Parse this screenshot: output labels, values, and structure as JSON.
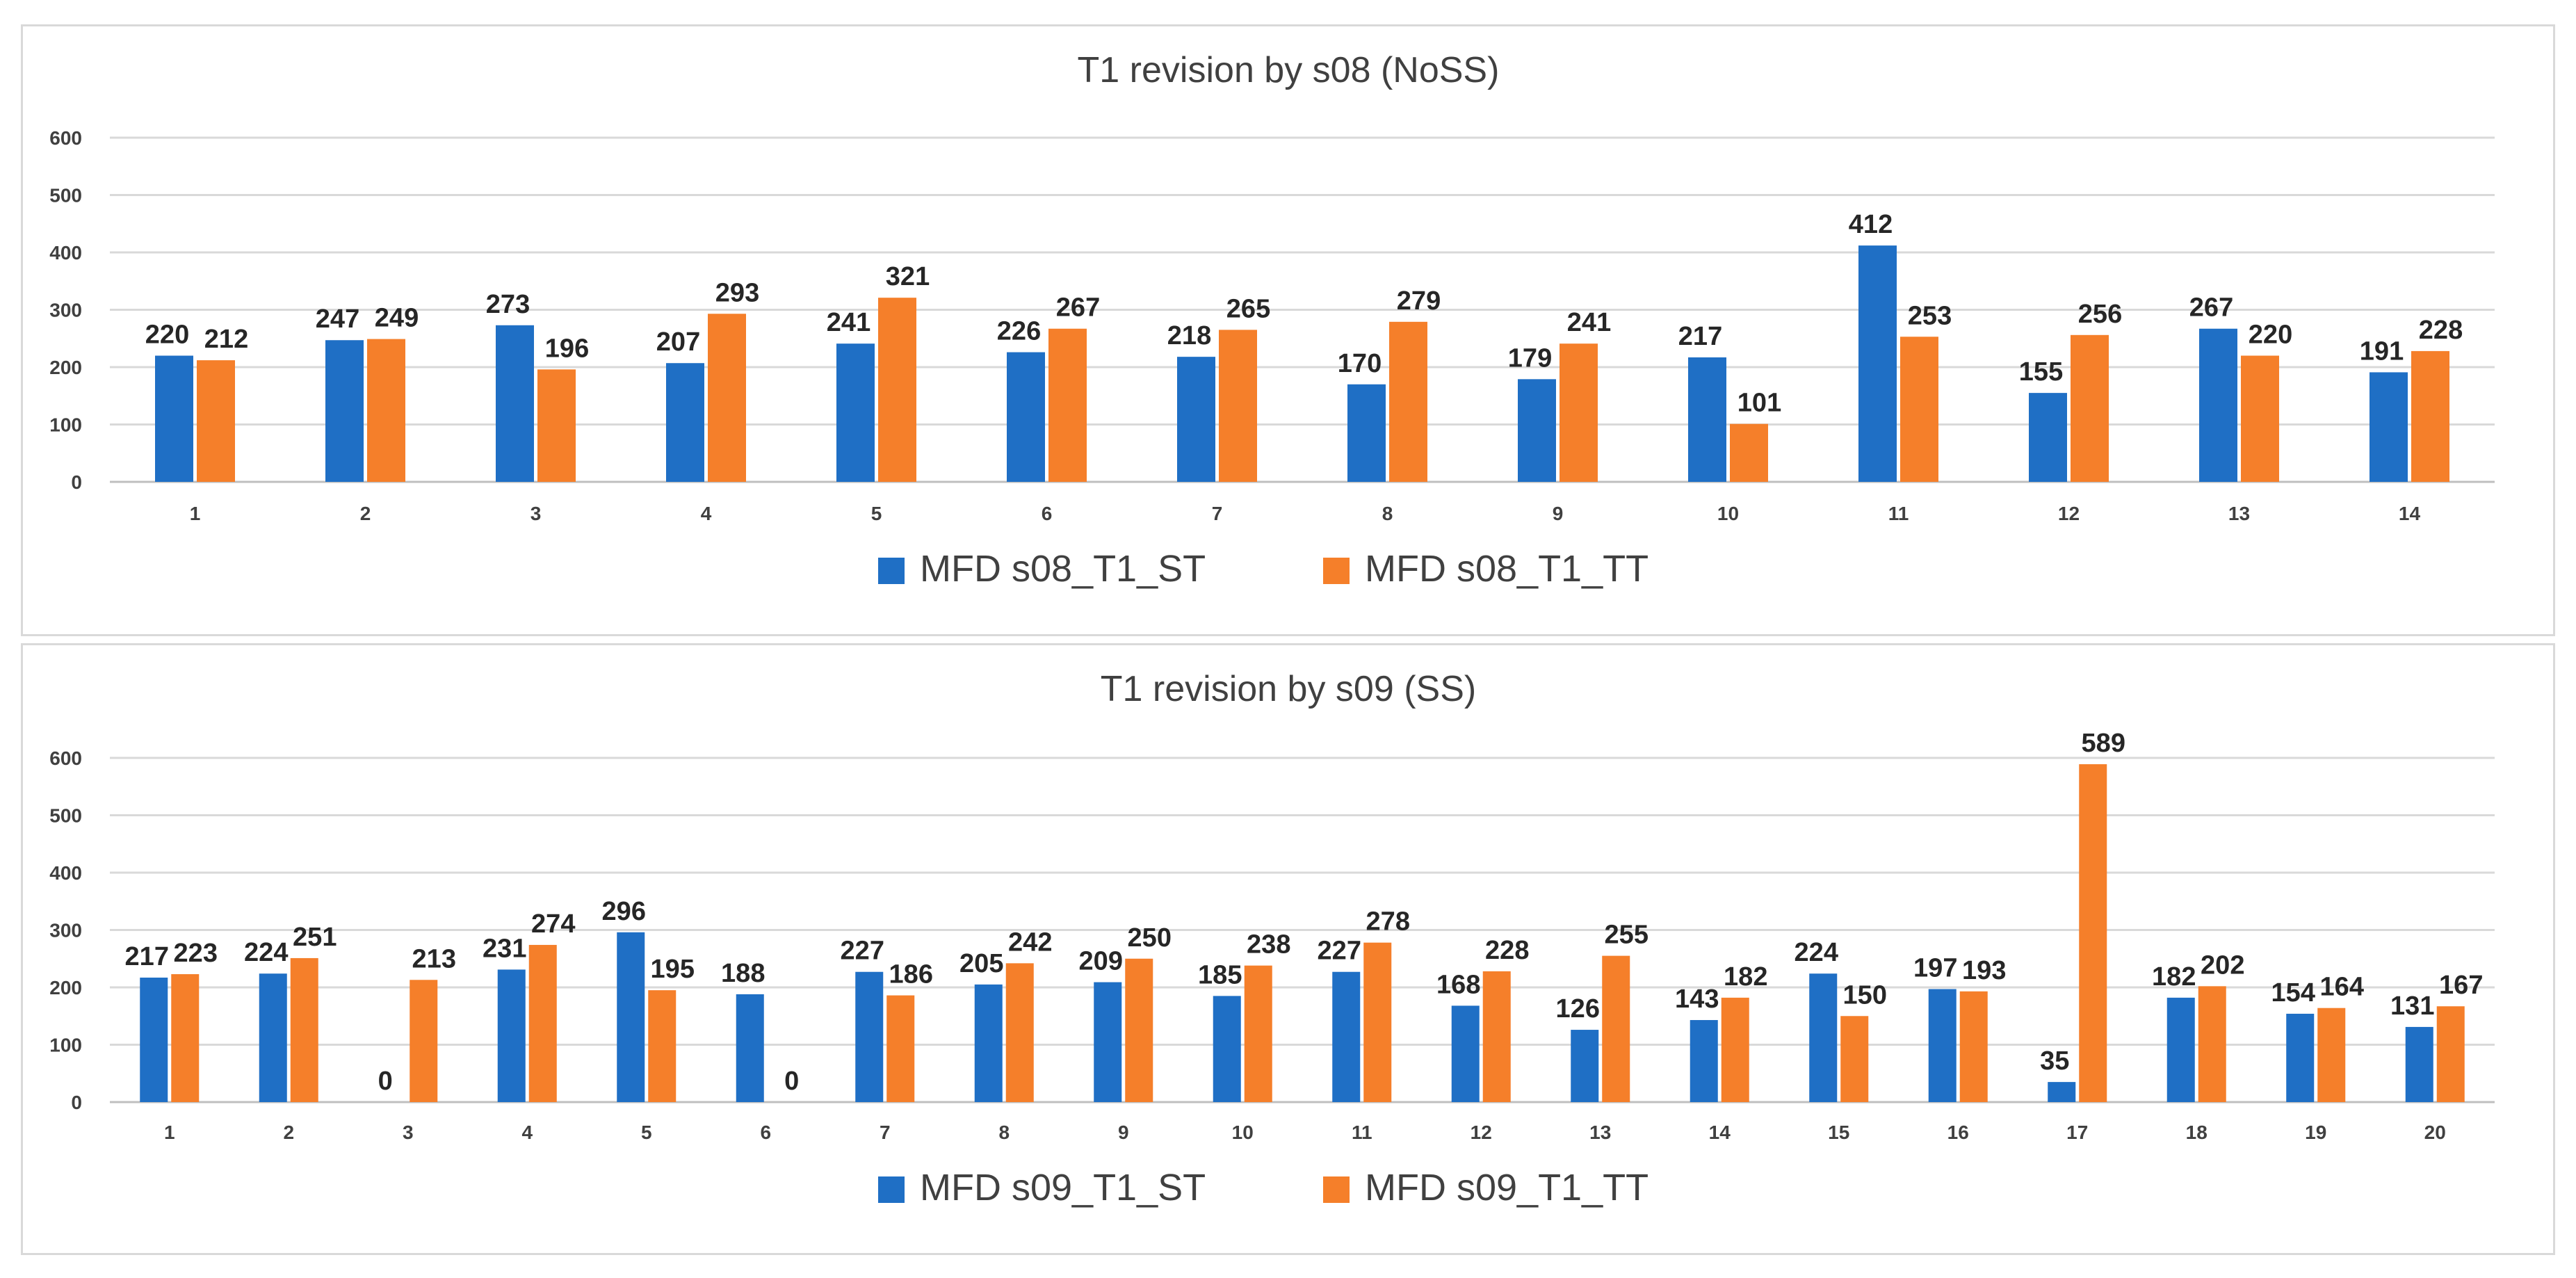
{
  "colors": {
    "st": "#1f6fc5",
    "tt": "#f57f2a",
    "grid": "#d9d9d9",
    "axis": "#bfbfbf",
    "leader": "#a6a6a6"
  },
  "chart_data": [
    {
      "type": "bar",
      "title": "T1 revision by s08 (NoSS)",
      "xlabel": "",
      "ylabel": "",
      "ylim": [
        0,
        600
      ],
      "yticks": [
        "0",
        "100",
        "200",
        "300",
        "400",
        "500",
        "600"
      ],
      "categories": [
        "1",
        "2",
        "3",
        "4",
        "5",
        "6",
        "7",
        "8",
        "9",
        "10",
        "11",
        "12",
        "13",
        "14"
      ],
      "legend_position": "bottom",
      "grid": true,
      "series": [
        {
          "name": "MFD s08_T1_ST",
          "values": [
            220,
            247,
            273,
            207,
            241,
            226,
            218,
            170,
            179,
            217,
            412,
            155,
            267,
            191
          ]
        },
        {
          "name": "MFD s08_T1_TT",
          "values": [
            212,
            249,
            196,
            293,
            321,
            267,
            265,
            279,
            241,
            101,
            253,
            256,
            220,
            228
          ]
        }
      ]
    },
    {
      "type": "bar",
      "title": "T1 revision by s09 (SS)",
      "xlabel": "",
      "ylabel": "",
      "ylim": [
        0,
        600
      ],
      "yticks": [
        "0",
        "100",
        "200",
        "300",
        "400",
        "500",
        "600"
      ],
      "categories": [
        "1",
        "2",
        "3",
        "4",
        "5",
        "6",
        "7",
        "8",
        "9",
        "10",
        "11",
        "12",
        "13",
        "14",
        "15",
        "16",
        "17",
        "18",
        "19",
        "20"
      ],
      "legend_position": "bottom",
      "grid": true,
      "series": [
        {
          "name": "MFD s09_T1_ST",
          "values": [
            217,
            224,
            0,
            231,
            296,
            188,
            227,
            205,
            209,
            185,
            227,
            168,
            126,
            143,
            224,
            197,
            35,
            182,
            154,
            131
          ]
        },
        {
          "name": "MFD s09_T1_TT",
          "values": [
            223,
            251,
            213,
            274,
            195,
            0,
            186,
            242,
            250,
            238,
            278,
            228,
            255,
            182,
            150,
            193,
            589,
            202,
            164,
            167
          ]
        }
      ]
    }
  ]
}
